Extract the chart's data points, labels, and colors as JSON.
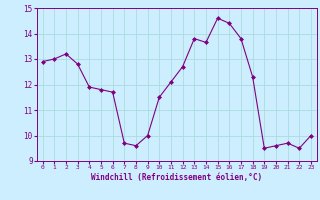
{
  "x": [
    0,
    1,
    2,
    3,
    4,
    5,
    6,
    7,
    8,
    9,
    10,
    11,
    12,
    13,
    14,
    15,
    16,
    17,
    18,
    19,
    20,
    21,
    22,
    23
  ],
  "y": [
    12.9,
    13.0,
    13.2,
    12.8,
    11.9,
    11.8,
    11.7,
    9.7,
    9.6,
    10.0,
    11.5,
    12.1,
    12.7,
    13.8,
    13.65,
    14.6,
    14.4,
    13.8,
    12.3,
    9.5,
    9.6,
    9.7,
    9.5,
    10.0
  ],
  "line_color": "#800080",
  "marker": "D",
  "marker_size": 2.0,
  "bg_color": "#cceeff",
  "grid_color": "#aadddd",
  "xlabel": "Windchill (Refroidissement éolien,°C)",
  "xlabel_color": "#800080",
  "tick_color": "#800080",
  "ylim": [
    9,
    15
  ],
  "xlim": [
    -0.5,
    23.5
  ],
  "yticks": [
    9,
    10,
    11,
    12,
    13,
    14,
    15
  ],
  "xticks": [
    0,
    1,
    2,
    3,
    4,
    5,
    6,
    7,
    8,
    9,
    10,
    11,
    12,
    13,
    14,
    15,
    16,
    17,
    18,
    19,
    20,
    21,
    22,
    23
  ]
}
